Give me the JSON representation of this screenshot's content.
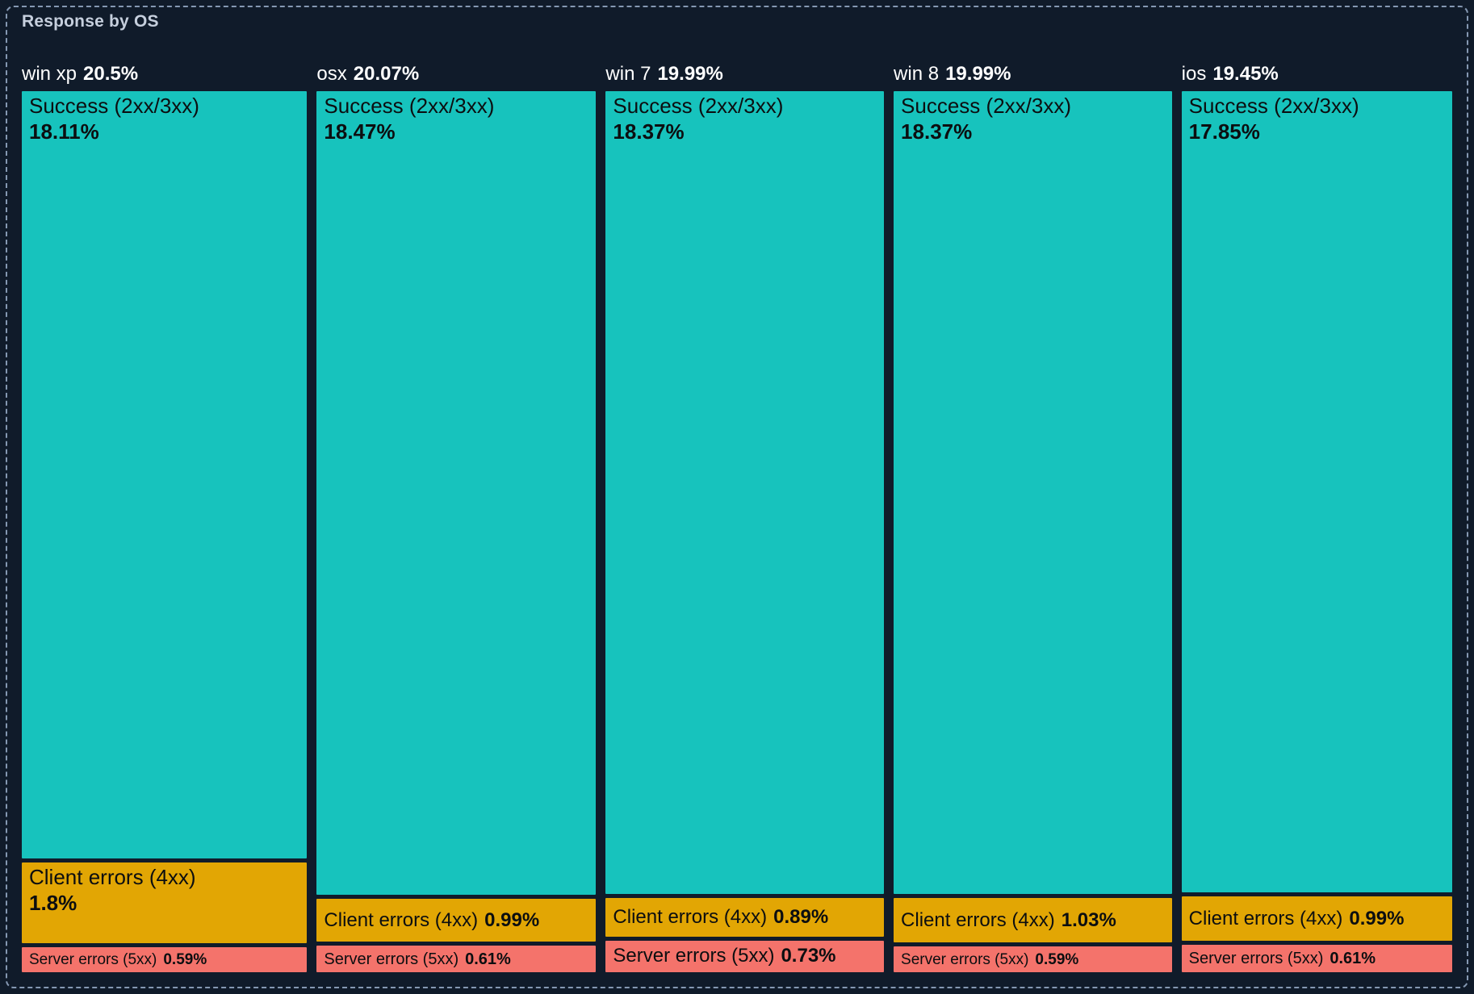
{
  "chart_data": {
    "type": "treemap",
    "title": "Response by OS",
    "legend_position": "none",
    "colors": {
      "success": "#17c3bd",
      "client_errors": "#e2a604",
      "server_errors": "#f4736b"
    },
    "groups": [
      {
        "label": "win xp",
        "total": 20.5,
        "total_label": "20.5%",
        "segments": [
          {
            "name": "Success (2xx/3xx)",
            "kind": "success",
            "value": 18.11,
            "value_label": "18.11%"
          },
          {
            "name": "Client errors (4xx)",
            "kind": "client_errors",
            "value": 1.8,
            "value_label": "1.8%"
          },
          {
            "name": "Server errors (5xx)",
            "kind": "server_errors",
            "value": 0.59,
            "value_label": "0.59%"
          }
        ]
      },
      {
        "label": "osx",
        "total": 20.07,
        "total_label": "20.07%",
        "segments": [
          {
            "name": "Success (2xx/3xx)",
            "kind": "success",
            "value": 18.47,
            "value_label": "18.47%"
          },
          {
            "name": "Client errors (4xx)",
            "kind": "client_errors",
            "value": 0.99,
            "value_label": "0.99%"
          },
          {
            "name": "Server errors (5xx)",
            "kind": "server_errors",
            "value": 0.61,
            "value_label": "0.61%"
          }
        ]
      },
      {
        "label": "win 7",
        "total": 19.99,
        "total_label": "19.99%",
        "segments": [
          {
            "name": "Success (2xx/3xx)",
            "kind": "success",
            "value": 18.37,
            "value_label": "18.37%"
          },
          {
            "name": "Client errors (4xx)",
            "kind": "client_errors",
            "value": 0.89,
            "value_label": "0.89%"
          },
          {
            "name": "Server errors (5xx)",
            "kind": "server_errors",
            "value": 0.73,
            "value_label": "0.73%"
          }
        ]
      },
      {
        "label": "win 8",
        "total": 19.99,
        "total_label": "19.99%",
        "segments": [
          {
            "name": "Success (2xx/3xx)",
            "kind": "success",
            "value": 18.37,
            "value_label": "18.37%"
          },
          {
            "name": "Client errors (4xx)",
            "kind": "client_errors",
            "value": 1.03,
            "value_label": "1.03%"
          },
          {
            "name": "Server errors (5xx)",
            "kind": "server_errors",
            "value": 0.59,
            "value_label": "0.59%"
          }
        ]
      },
      {
        "label": "ios",
        "total": 19.45,
        "total_label": "19.45%",
        "segments": [
          {
            "name": "Success (2xx/3xx)",
            "kind": "success",
            "value": 17.85,
            "value_label": "17.85%"
          },
          {
            "name": "Client errors (4xx)",
            "kind": "client_errors",
            "value": 0.99,
            "value_label": "0.99%"
          },
          {
            "name": "Server errors (5xx)",
            "kind": "server_errors",
            "value": 0.61,
            "value_label": "0.61%"
          }
        ]
      }
    ]
  }
}
